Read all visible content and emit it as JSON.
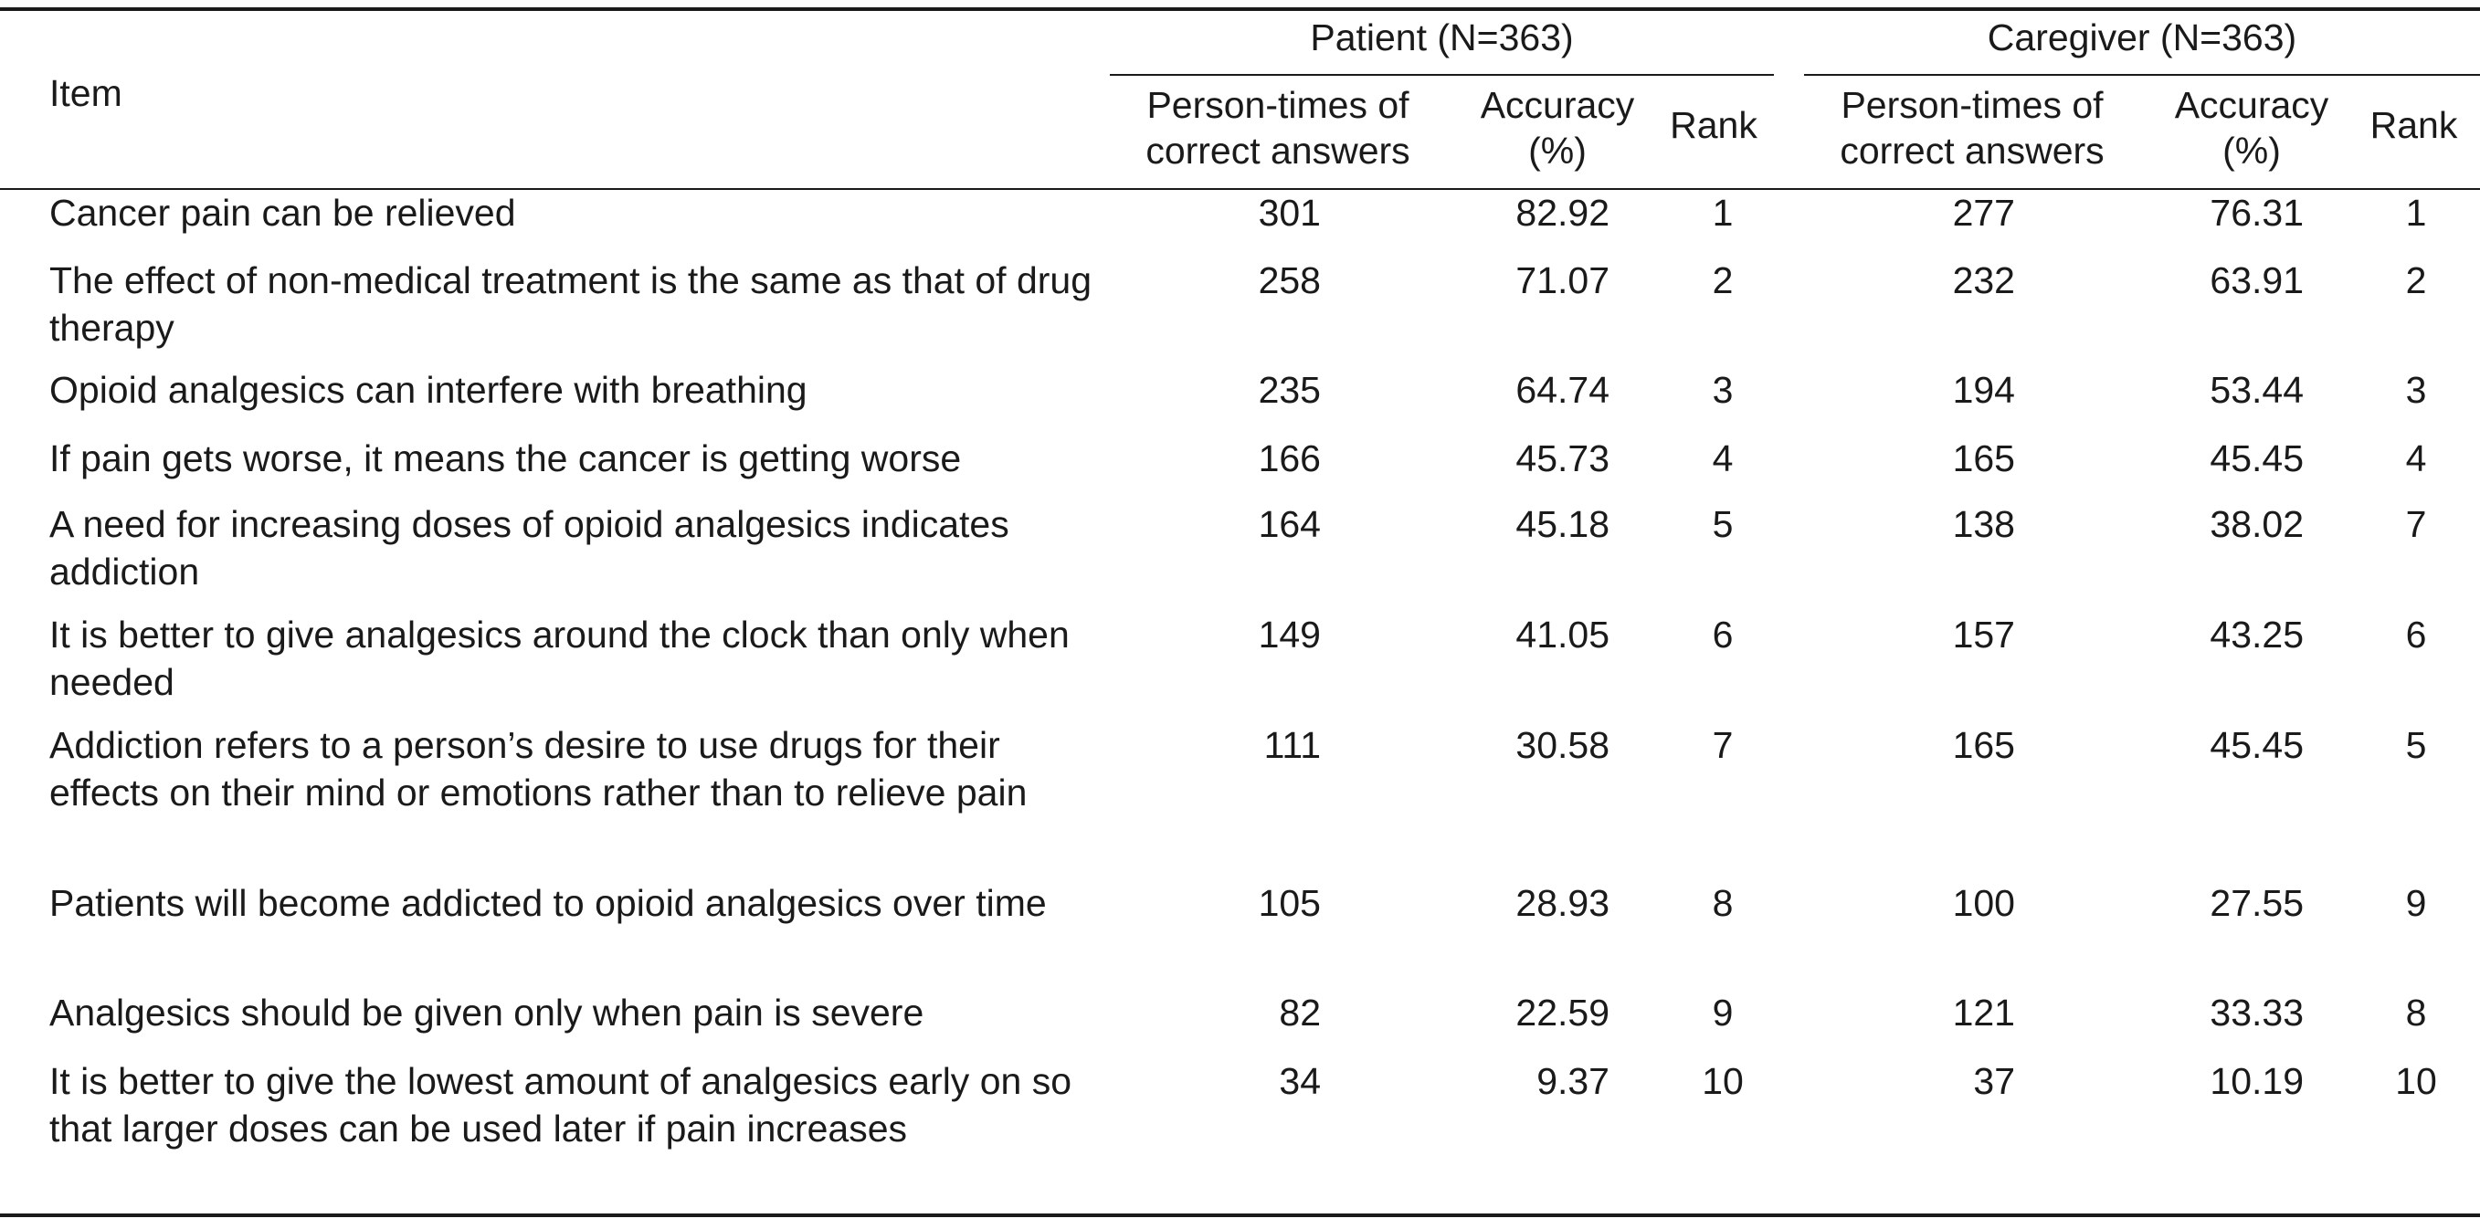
{
  "table": {
    "item_header": "Item",
    "groups": [
      {
        "label": "Patient (N=363)"
      },
      {
        "label": "Caregiver (N=363)"
      }
    ],
    "subheaders": {
      "correct": "Person-times of correct answers",
      "accuracy": "Accuracy (%)",
      "rank": "Rank"
    },
    "rows": [
      {
        "item": "Cancer pain can be relieved",
        "p_correct": "301",
        "p_acc": "82.92",
        "p_rank": "1",
        "c_correct": "277",
        "c_acc": "76.31",
        "c_rank": "1"
      },
      {
        "item": "The effect of non-medical treatment is the same as that of drug therapy",
        "p_correct": "258",
        "p_acc": "71.07",
        "p_rank": "2",
        "c_correct": "232",
        "c_acc": "63.91",
        "c_rank": "2"
      },
      {
        "item": "Opioid analgesics can interfere with breathing",
        "p_correct": "235",
        "p_acc": "64.74",
        "p_rank": "3",
        "c_correct": "194",
        "c_acc": "53.44",
        "c_rank": "3"
      },
      {
        "item": "If pain gets worse, it means the cancer is getting worse",
        "p_correct": "166",
        "p_acc": "45.73",
        "p_rank": "4",
        "c_correct": "165",
        "c_acc": "45.45",
        "c_rank": "4"
      },
      {
        "item": "A need for increasing doses of opioid analgesics indicates addiction",
        "p_correct": "164",
        "p_acc": "45.18",
        "p_rank": "5",
        "c_correct": "138",
        "c_acc": "38.02",
        "c_rank": "7"
      },
      {
        "item": "It is better to give analgesics around the clock than only when needed",
        "p_correct": "149",
        "p_acc": "41.05",
        "p_rank": "6",
        "c_correct": "157",
        "c_acc": "43.25",
        "c_rank": "6"
      },
      {
        "item": "Addiction refers to a person’s desire to use drugs for their effects on their mind or emotions rather than to relieve pain",
        "p_correct": "111",
        "p_acc": "30.58",
        "p_rank": "7",
        "c_correct": "165",
        "c_acc": "45.45",
        "c_rank": "5"
      },
      {
        "item": "Patients will become addicted to opioid analgesics over time",
        "p_correct": "105",
        "p_acc": "28.93",
        "p_rank": "8",
        "c_correct": "100",
        "c_acc": "27.55",
        "c_rank": "9"
      },
      {
        "item": "Analgesics should be given only when pain is severe",
        "p_correct": "82",
        "p_acc": "22.59",
        "p_rank": "9",
        "c_correct": "121",
        "c_acc": "33.33",
        "c_rank": "8"
      },
      {
        "item": "It is better to give the lowest amount of analgesics early on so that larger doses can be used later if pain increases",
        "p_correct": "34",
        "p_acc": "9.37",
        "p_rank": "10",
        "c_correct": "37",
        "c_acc": "10.19",
        "c_rank": "10"
      }
    ]
  }
}
